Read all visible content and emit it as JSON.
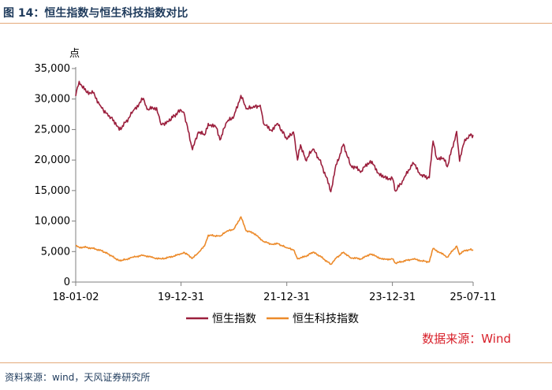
{
  "title": "图 14：恒生指数与恒生科技指数对比",
  "source_note": "数据来源：Wind",
  "footer": "资料来源：wind，天风证券研究所",
  "colors": {
    "hsi": "#9b1f3d",
    "hstech": "#ec8a2a",
    "axis": "#7f7f7f",
    "rule": "#e4a97a",
    "note": "#d8202a"
  },
  "chart_data": {
    "type": "line",
    "ylabel": "点",
    "ylim": [
      0,
      35000
    ],
    "yticks": [
      0,
      5000,
      10000,
      15000,
      20000,
      25000,
      30000,
      35000
    ],
    "ytick_labels": [
      "0",
      "5,000",
      "10,000",
      "15,000",
      "20,000",
      "25,000",
      "30,000",
      "35,000"
    ],
    "xlim": [
      "2018-01-02",
      "2025-07-11"
    ],
    "xticks": [
      "2018-01-02",
      "2019-12-31",
      "2021-12-31",
      "2023-12-31",
      "2025-07-11"
    ],
    "xtick_labels": [
      "18-01-02",
      "19-12-31",
      "21-12-31",
      "23-12-31",
      "25-07-11"
    ],
    "grid": false,
    "legend_position": "bottom",
    "series": [
      {
        "name": "恒生指数",
        "x": [
          "2018-01-02",
          "2018-01-26",
          "2018-03-15",
          "2018-05-02",
          "2018-06-25",
          "2018-08-15",
          "2018-09-10",
          "2018-10-30",
          "2018-12-14",
          "2019-02-01",
          "2019-04-15",
          "2019-05-10",
          "2019-06-20",
          "2019-07-15",
          "2019-08-15",
          "2019-10-01",
          "2019-11-15",
          "2019-12-31",
          "2020-01-20",
          "2020-03-19",
          "2020-04-29",
          "2020-06-10",
          "2020-07-06",
          "2020-08-31",
          "2020-09-25",
          "2020-11-10",
          "2020-12-31",
          "2021-02-17",
          "2021-03-25",
          "2021-05-10",
          "2021-06-30",
          "2021-07-28",
          "2021-09-15",
          "2021-10-29",
          "2021-12-31",
          "2022-02-15",
          "2022-03-15",
          "2022-04-05",
          "2022-05-10",
          "2022-06-30",
          "2022-08-15",
          "2022-09-30",
          "2022-10-31",
          "2022-11-30",
          "2023-01-27",
          "2023-03-15",
          "2023-05-31",
          "2023-07-31",
          "2023-09-29",
          "2023-10-31",
          "2023-12-31",
          "2024-01-22",
          "2024-03-15",
          "2024-05-20",
          "2024-07-15",
          "2024-09-11",
          "2024-10-07",
          "2024-10-31",
          "2024-12-31",
          "2025-01-13",
          "2025-02-28",
          "2025-03-19",
          "2025-04-08",
          "2025-05-15",
          "2025-06-20",
          "2025-07-11"
        ],
        "values": [
          30500,
          32900,
          31200,
          31000,
          28800,
          27200,
          27000,
          24900,
          26200,
          28000,
          30100,
          28300,
          28500,
          28600,
          25800,
          26300,
          27300,
          28200,
          27800,
          21700,
          24600,
          24100,
          26000,
          25300,
          23300,
          26200,
          27200,
          30600,
          28400,
          28600,
          29000,
          25800,
          24900,
          26000,
          23400,
          24600,
          20000,
          22500,
          20000,
          21800,
          20000,
          17200,
          14800,
          18600,
          22600,
          19200,
          18200,
          19900,
          17800,
          17100,
          17000,
          14900,
          16700,
          19600,
          17500,
          17100,
          23100,
          20400,
          20000,
          18900,
          23000,
          24700,
          19800,
          23400,
          24000,
          24100
        ]
      },
      {
        "name": "恒生科技指数",
        "x": [
          "2018-01-02",
          "2018-01-26",
          "2018-03-15",
          "2018-05-02",
          "2018-06-25",
          "2018-08-15",
          "2018-10-30",
          "2018-12-14",
          "2019-02-01",
          "2019-04-15",
          "2019-06-20",
          "2019-08-15",
          "2019-10-01",
          "2019-12-31",
          "2020-01-20",
          "2020-03-19",
          "2020-04-29",
          "2020-06-10",
          "2020-07-06",
          "2020-09-25",
          "2020-11-10",
          "2020-12-31",
          "2021-02-17",
          "2021-03-25",
          "2021-05-10",
          "2021-07-28",
          "2021-09-15",
          "2021-10-29",
          "2021-12-31",
          "2022-02-15",
          "2022-03-15",
          "2022-05-10",
          "2022-06-30",
          "2022-08-15",
          "2022-10-31",
          "2022-11-30",
          "2023-01-27",
          "2023-03-15",
          "2023-05-31",
          "2023-07-31",
          "2023-10-31",
          "2023-12-31",
          "2024-01-22",
          "2024-05-20",
          "2024-07-15",
          "2024-09-11",
          "2024-10-07",
          "2024-12-31",
          "2025-01-13",
          "2025-03-19",
          "2025-04-08",
          "2025-05-15",
          "2025-06-20",
          "2025-07-11"
        ],
        "values": [
          5900,
          5700,
          5700,
          5500,
          5200,
          4600,
          3500,
          3700,
          4100,
          4400,
          4000,
          3800,
          4000,
          4600,
          4900,
          3900,
          4800,
          5900,
          7700,
          7500,
          8300,
          8700,
          10700,
          8400,
          8100,
          6600,
          6200,
          6300,
          5600,
          5300,
          3800,
          4200,
          4900,
          4300,
          2900,
          3800,
          4900,
          4000,
          3800,
          4600,
          3700,
          3800,
          3100,
          3800,
          3500,
          3300,
          5500,
          4300,
          4100,
          5900,
          4500,
          5200,
          5300,
          5300
        ]
      }
    ]
  }
}
